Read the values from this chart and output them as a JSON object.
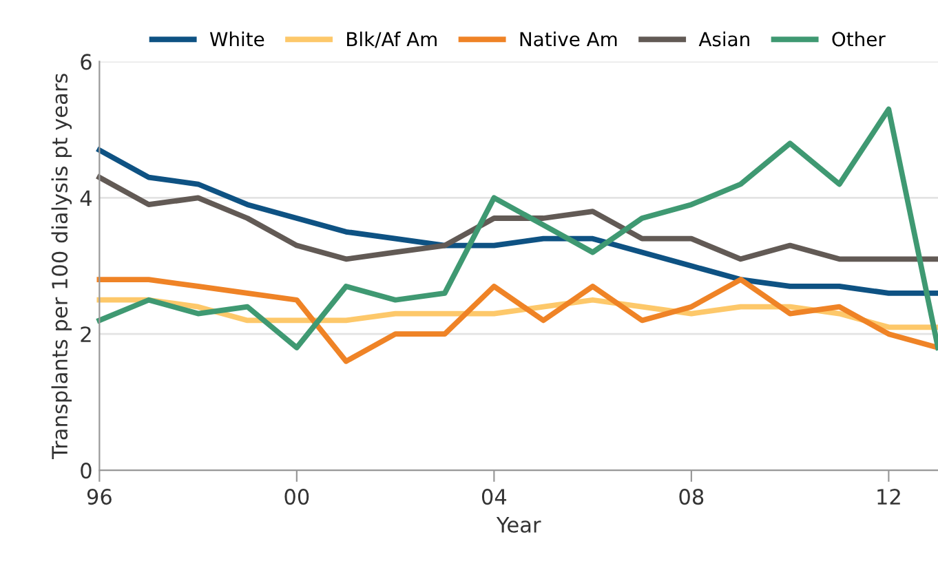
{
  "chart_data": {
    "type": "line",
    "xlabel": "Year",
    "ylabel": "Transplants per 100 dialysis pt years",
    "x": [
      1996,
      1997,
      1998,
      1999,
      2000,
      2001,
      2002,
      2003,
      2004,
      2005,
      2006,
      2007,
      2008,
      2009,
      2010,
      2011,
      2012,
      2013
    ],
    "xlim": [
      1996,
      2013
    ],
    "xticks": [
      {
        "value": 1996,
        "label": "96"
      },
      {
        "value": 2000,
        "label": "00"
      },
      {
        "value": 2004,
        "label": "04"
      },
      {
        "value": 2008,
        "label": "08"
      },
      {
        "value": 2012,
        "label": "12"
      }
    ],
    "ylim": [
      0,
      6
    ],
    "yticks": [
      0,
      2,
      4,
      6
    ],
    "grid": "y",
    "legend": "top",
    "marker": "none",
    "line_style": "solid",
    "series": [
      {
        "name": "White",
        "color": "#0e5283",
        "values": [
          4.7,
          4.3,
          4.2,
          3.9,
          3.7,
          3.5,
          3.4,
          3.3,
          3.3,
          3.4,
          3.4,
          3.2,
          3.0,
          2.8,
          2.7,
          2.7,
          2.6,
          2.6
        ]
      },
      {
        "name": "Blk/Af Am",
        "color": "#fdc86a",
        "values": [
          2.5,
          2.5,
          2.4,
          2.2,
          2.2,
          2.2,
          2.3,
          2.3,
          2.3,
          2.4,
          2.5,
          2.4,
          2.3,
          2.4,
          2.4,
          2.3,
          2.1,
          2.1
        ]
      },
      {
        "name": "Native Am",
        "color": "#ef8326",
        "values": [
          2.8,
          2.8,
          2.7,
          2.6,
          2.5,
          1.6,
          2.0,
          2.0,
          2.7,
          2.2,
          2.7,
          2.2,
          2.4,
          2.8,
          2.3,
          2.4,
          2.0,
          1.8
        ]
      },
      {
        "name": "Asian",
        "color": "#625a55",
        "values": [
          4.3,
          3.9,
          4.0,
          3.7,
          3.3,
          3.1,
          3.2,
          3.3,
          3.7,
          3.7,
          3.8,
          3.4,
          3.4,
          3.1,
          3.3,
          3.1,
          3.1,
          3.1
        ]
      },
      {
        "name": "Other",
        "color": "#3f9972",
        "values": [
          2.2,
          2.5,
          2.3,
          2.4,
          1.8,
          2.7,
          2.5,
          2.6,
          4.0,
          3.6,
          3.2,
          3.7,
          3.9,
          4.2,
          4.8,
          4.2,
          5.3,
          1.8
        ]
      }
    ]
  }
}
